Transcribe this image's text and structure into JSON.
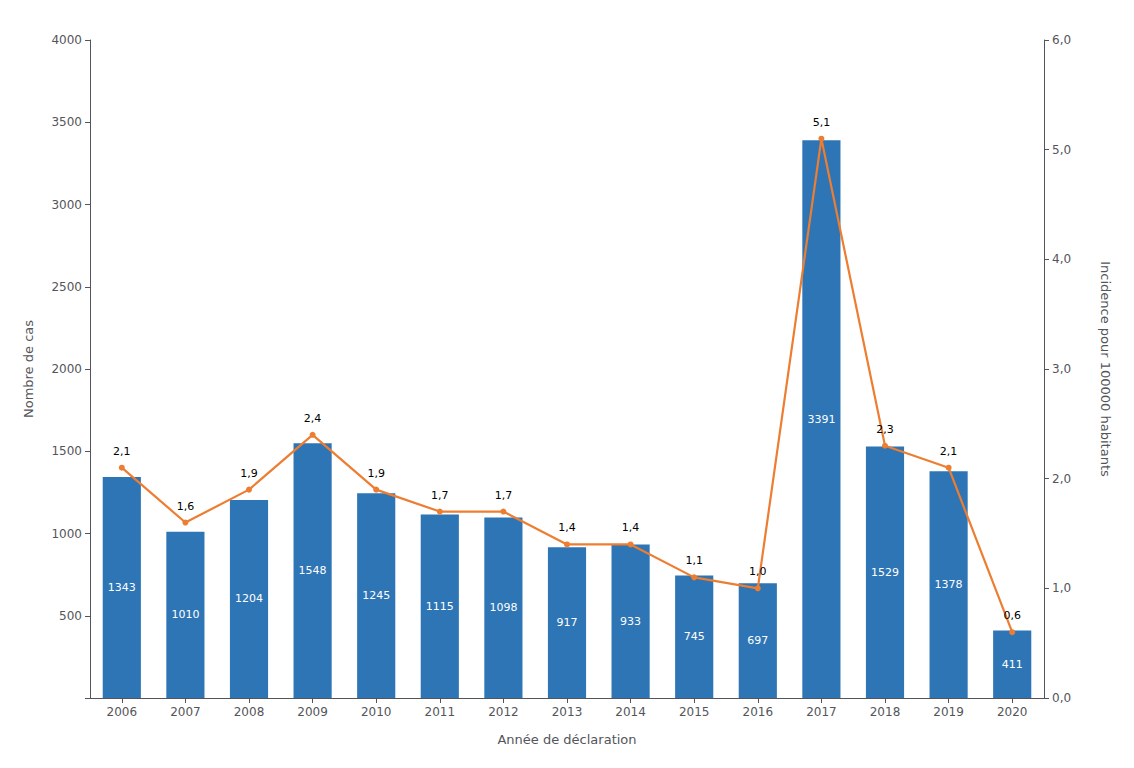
{
  "chart_data": {
    "type": "bar",
    "xlabel": "Année de déclaration",
    "ylabel": "Nombre de cas",
    "y2label": "Incidence pour 100000 habitants",
    "categories": [
      "2006",
      "2007",
      "2008",
      "2009",
      "2010",
      "2011",
      "2012",
      "2013",
      "2014",
      "2015",
      "2016",
      "2017",
      "2018",
      "2019",
      "2020"
    ],
    "series": [
      {
        "type": "bar",
        "color": "#2E75B6",
        "data_labels": true,
        "values": [
          1343,
          1010,
          1204,
          1548,
          1245,
          1115,
          1098,
          917,
          933,
          745,
          697,
          3391,
          1529,
          1378,
          411
        ]
      },
      {
        "type": "line",
        "axis": "y2",
        "color": "#ED7D31",
        "marker": "circle",
        "data_labels": true,
        "values": [
          2.1,
          1.6,
          1.9,
          2.4,
          1.9,
          1.7,
          1.7,
          1.4,
          1.4,
          1.1,
          1.0,
          5.1,
          2.3,
          2.1,
          0.6
        ],
        "value_labels": [
          "2,1",
          "1,6",
          "1,9",
          "2,4",
          "1,9",
          "1,7",
          "1,7",
          "1,4",
          "1,4",
          "1,1",
          "1,0",
          "5,1",
          "2,3",
          "2,1",
          "0,6"
        ]
      }
    ],
    "ylim": [
      0,
      4000
    ],
    "yticks": [
      {
        "value": 0,
        "label": null
      },
      500,
      1000,
      1500,
      2000,
      2500,
      3000,
      3500,
      4000
    ],
    "y2lim": [
      0.0,
      6.0
    ],
    "y2ticks": [
      {
        "value": 0.0,
        "label": "0,0"
      },
      {
        "value": 1.0,
        "label": "1,0"
      },
      {
        "value": 2.0,
        "label": "2,0"
      },
      {
        "value": 3.0,
        "label": "3,0"
      },
      {
        "value": 4.0,
        "label": "4,0"
      },
      {
        "value": 5.0,
        "label": "5,0"
      },
      {
        "value": 6.0,
        "label": "6,0"
      }
    ],
    "grid": false
  }
}
